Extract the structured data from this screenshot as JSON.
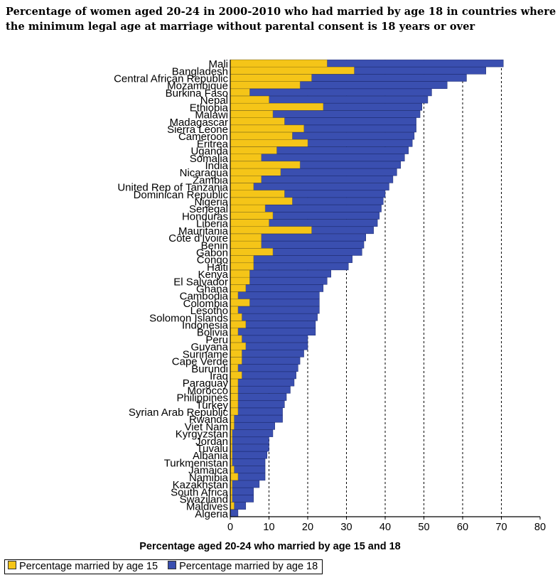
{
  "chart_data": {
    "type": "bar",
    "orientation": "horizontal",
    "stacked": false,
    "overlay": true,
    "title": "Percentage of women aged 20-24 in 2000-2010 who had married by age 18 in countries where the minimum legal age at marriage without parental consent is 18 years or over",
    "xlabel": "Percentage aged 20-24 who married by age 15 and 18",
    "ylabel": "",
    "xlim": [
      0,
      80
    ],
    "xticks": [
      "0",
      "10",
      "20",
      "30",
      "40",
      "50",
      "60",
      "70",
      "80"
    ],
    "grid": "vertical-dashed",
    "legend_position": "bottom-left",
    "categories": [
      "Mali",
      "Bangladesh",
      "Central African Republic",
      "Mozambique",
      "Burkina Faso",
      "Nepal",
      "Ethiopia",
      "Malawi",
      "Madagascar",
      "Sierra Leone",
      "Cameroon",
      "Eritrea",
      "Uganda",
      "Somalia",
      "India",
      "Nicaragua",
      "Zambia",
      "United Rep of Tanzania",
      "Dominican Republic",
      "Nigeria",
      "Senegal",
      "Honduras",
      "Liberia",
      "Mauritania",
      "Côte d'Ivoire",
      "Benin",
      "Gabon",
      "Congo",
      "Haiti",
      "Kenya",
      "El Salvador",
      "Ghana",
      "Cambodia",
      "Colombia",
      "Lesotho",
      "Solomon Islands",
      "Indonesia",
      "Bolivia",
      "Peru",
      "Guyana",
      "Suriname",
      "Cape Verde",
      "Burundi",
      "Iraq",
      "Paraguay",
      "Morocco",
      "Philippines",
      "Turkey",
      "Syrian Arab Republic",
      "Rwanda",
      "Viet Nam",
      "Kyrgyzstan",
      "Jordan",
      "Tuvalu",
      "Albania",
      "Turkmenistan",
      "Jamaica",
      "Namibia",
      "Kazakhstan",
      "South Africa",
      "Swaziland",
      "Maldives",
      "Algeria"
    ],
    "series": [
      {
        "name": "Percentage married by age 15",
        "color": "#f5c518",
        "values": [
          25,
          32,
          21,
          18,
          5,
          10,
          24,
          11,
          14,
          19,
          16,
          20,
          12,
          8,
          18,
          13,
          8,
          6,
          14,
          16,
          9,
          11,
          10,
          21,
          8,
          8,
          11,
          6,
          6,
          5,
          5,
          4,
          2,
          5,
          2,
          3,
          4,
          2,
          3,
          4,
          3,
          3,
          2,
          3,
          2,
          2,
          2,
          2,
          2,
          1,
          1,
          0.5,
          0.5,
          0.5,
          0.5,
          0.5,
          1,
          2,
          0.5,
          0.5,
          0.5,
          1,
          0
        ]
      },
      {
        "name": "Percentage married by age 18",
        "color": "#3a4fb0",
        "values": [
          70.5,
          66,
          61,
          56,
          52,
          51,
          49.5,
          49,
          48,
          48,
          47.5,
          47,
          46,
          45,
          44,
          43,
          42,
          41,
          40,
          39.5,
          39,
          38.5,
          38,
          37,
          35,
          34.5,
          34,
          31.5,
          30.5,
          26,
          25,
          24,
          23,
          23,
          23,
          22.5,
          22,
          22,
          20,
          20,
          19,
          18,
          17.5,
          17,
          16.5,
          15.5,
          14.5,
          14,
          13.5,
          13.5,
          11.5,
          11,
          10,
          10,
          9.5,
          9,
          9,
          9,
          7.5,
          6,
          6,
          4,
          2
        ]
      }
    ]
  },
  "legend": {
    "items": [
      {
        "label": "Percentage married by age 15",
        "color": "#f5c518"
      },
      {
        "label": "Percentage married by age 18",
        "color": "#3a4fb0"
      }
    ]
  }
}
